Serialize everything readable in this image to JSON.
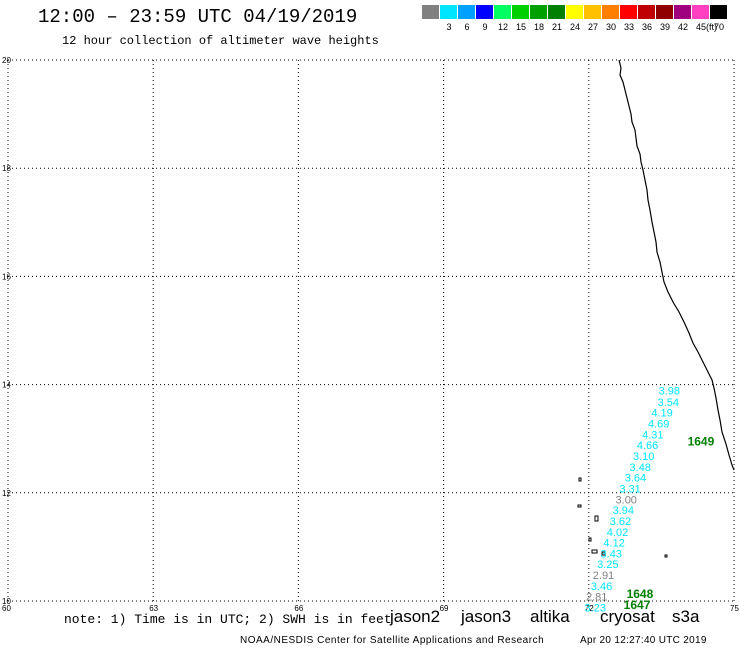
{
  "header": {
    "title": "12:00 – 23:59 UTC 04/19/2019",
    "subtitle": "12 hour collection of altimeter wave heights"
  },
  "color_scale": {
    "unit": "(ft)",
    "entries": [
      {
        "label": "",
        "color": "#808080"
      },
      {
        "label": "3",
        "color": "#00e5ff"
      },
      {
        "label": "6",
        "color": "#00a0ff"
      },
      {
        "label": "9",
        "color": "#0000ff"
      },
      {
        "label": "12",
        "color": "#00ff60"
      },
      {
        "label": "15",
        "color": "#00d000"
      },
      {
        "label": "18",
        "color": "#00a000"
      },
      {
        "label": "21",
        "color": "#008000"
      },
      {
        "label": "24",
        "color": "#ffff00"
      },
      {
        "label": "27",
        "color": "#ffc000"
      },
      {
        "label": "30",
        "color": "#ff8000"
      },
      {
        "label": "33",
        "color": "#ff0000"
      },
      {
        "label": "36",
        "color": "#c00000"
      },
      {
        "label": "39",
        "color": "#900000"
      },
      {
        "label": "42",
        "color": "#a0007f"
      },
      {
        "label": "45",
        "color": "#ff40c0"
      },
      {
        "label": "70",
        "color": "#000000"
      }
    ]
  },
  "map": {
    "lon_range": [
      60,
      75
    ],
    "lat_range": [
      10,
      20
    ],
    "x_ticks": [
      "60",
      "63",
      "66",
      "69",
      "72",
      "75"
    ],
    "y_ticks": [
      "10",
      "12",
      "14",
      "16",
      "18",
      "20"
    ],
    "grid": "dotted"
  },
  "wave_observations": [
    {
      "lon": 73.69,
      "lat": 13.89,
      "text": "3.98",
      "color": "#00e5ff"
    },
    {
      "lon": 73.67,
      "lat": 13.68,
      "text": "3.54",
      "color": "#00e5ff"
    },
    {
      "lon": 73.54,
      "lat": 13.48,
      "text": "4.19",
      "color": "#00e5ff"
    },
    {
      "lon": 73.47,
      "lat": 13.28,
      "text": "4.69",
      "color": "#00e5ff"
    },
    {
      "lon": 73.35,
      "lat": 13.08,
      "text": "4.31",
      "color": "#00e5ff"
    },
    {
      "lon": 73.24,
      "lat": 12.88,
      "text": "4.66",
      "color": "#00e5ff"
    },
    {
      "lon": 73.16,
      "lat": 12.68,
      "text": "3.10",
      "color": "#00e5ff"
    },
    {
      "lon": 73.09,
      "lat": 12.48,
      "text": "3.48",
      "color": "#00e5ff"
    },
    {
      "lon": 72.99,
      "lat": 12.28,
      "text": "3.64",
      "color": "#00e5ff"
    },
    {
      "lon": 72.88,
      "lat": 12.08,
      "text": "3.31",
      "color": "#00e5ff"
    },
    {
      "lon": 72.8,
      "lat": 11.88,
      "text": "3.00",
      "color": "#808080"
    },
    {
      "lon": 72.74,
      "lat": 11.68,
      "text": "3.94",
      "color": "#00e5ff"
    },
    {
      "lon": 72.68,
      "lat": 11.48,
      "text": "3.62",
      "color": "#00e5ff"
    },
    {
      "lon": 72.62,
      "lat": 11.28,
      "text": "4.02",
      "color": "#00e5ff"
    },
    {
      "lon": 72.55,
      "lat": 11.08,
      "text": "4.12",
      "color": "#00e5ff"
    },
    {
      "lon": 72.49,
      "lat": 10.88,
      "text": "3.43",
      "color": "#00e5ff"
    },
    {
      "lon": 72.42,
      "lat": 10.68,
      "text": "3.25",
      "color": "#00e5ff"
    },
    {
      "lon": 72.33,
      "lat": 10.48,
      "text": "2.91",
      "color": "#808080"
    },
    {
      "lon": 72.29,
      "lat": 10.28,
      "text": "3.46",
      "color": "#00e5ff"
    },
    {
      "lon": 72.19,
      "lat": 10.08,
      "text": "2.81",
      "color": "#808080"
    },
    {
      "lon": 72.16,
      "lat": 9.88,
      "text": "3.23",
      "color": "#00e5ff"
    }
  ],
  "track_labels": [
    {
      "lon": 74.33,
      "lat": 12.95,
      "text": "1649"
    },
    {
      "lon": 73.07,
      "lat": 10.13,
      "text": "1648"
    },
    {
      "lon": 73.01,
      "lat": 9.93,
      "text": "1647"
    }
  ],
  "footer": {
    "note": "note: 1) Time is in UTC; 2) SWH is in feet",
    "satellites": [
      {
        "name": "jason2",
        "color": "#0000d0"
      },
      {
        "name": "jason3",
        "color": "#00a000"
      },
      {
        "name": "altika",
        "color": "#ff8000"
      },
      {
        "name": "cryosat",
        "color": "#e00000"
      },
      {
        "name": "s3a",
        "color": "#900000"
      }
    ],
    "credit": "NOAA/NESDIS Center for Satellite Applications and Research",
    "timestamp": "Apr 20 12:27:40 UTC 2019"
  }
}
